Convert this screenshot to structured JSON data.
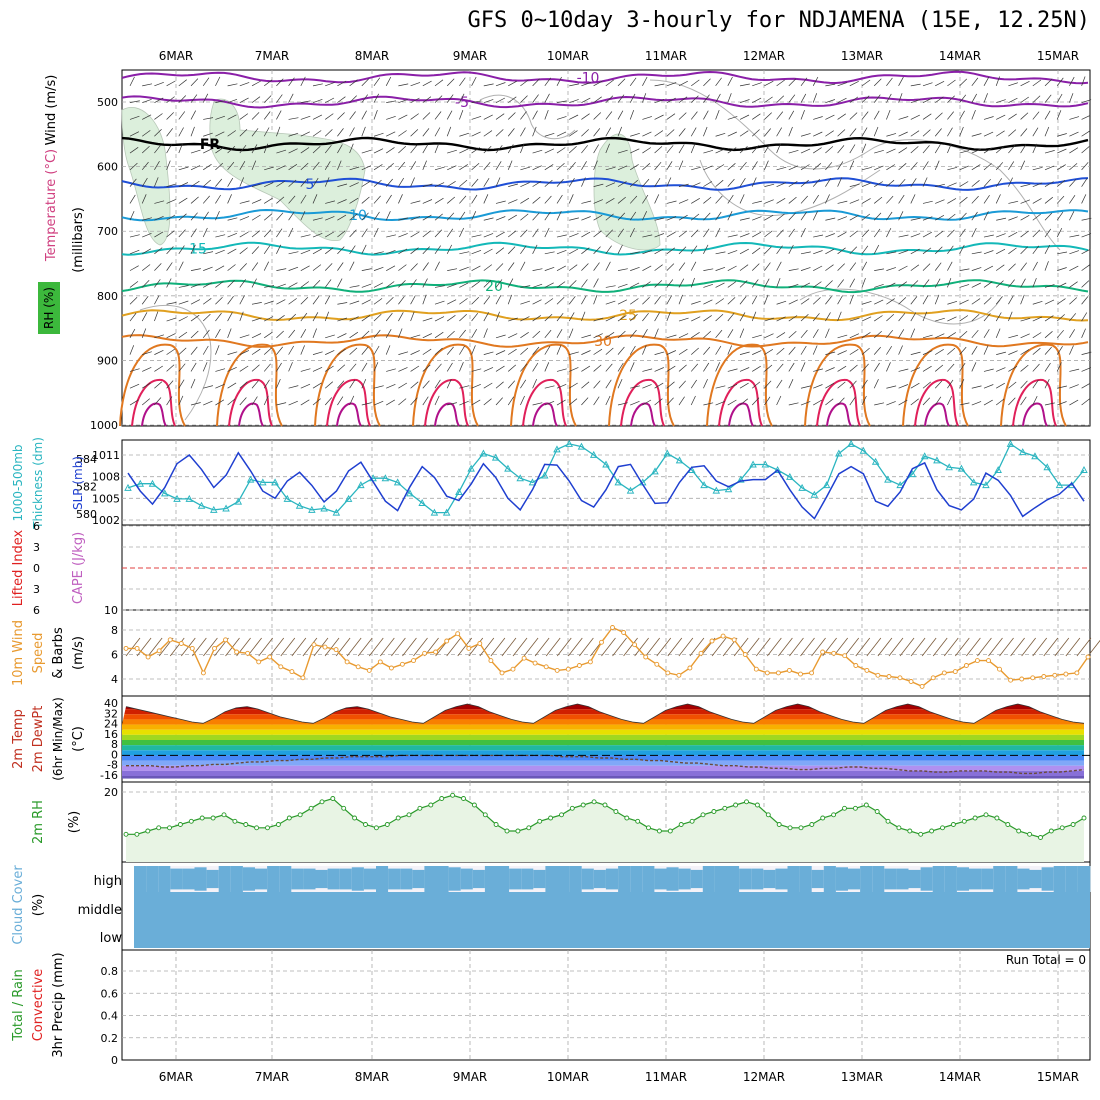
{
  "title": "GFS 0~10day 3-hourly for NDJAMENA (15E, 12.25N)",
  "dates": [
    "6MAR",
    "7MAR",
    "8MAR",
    "9MAR",
    "10MAR",
    "11MAR",
    "12MAR",
    "13MAR",
    "14MAR",
    "15MAR"
  ],
  "colors": {
    "temp_minus10": "#8a1fa8",
    "temp_minus5": "#8a1fa8",
    "temp_fr": "#000000",
    "temp_5": "#1f4fd6",
    "temp_10": "#1a9ad6",
    "temp_15": "#13b8b8",
    "temp_20": "#10b07a",
    "temp_25": "#e0a020",
    "temp_30": "#e07820",
    "temp_35": "#e0205a",
    "temp_40": "#b0108a",
    "rh_fill": "#dcefdc",
    "slp": "#1f3fd0",
    "thickness": "#2ab5c0",
    "wind10": "#e89a30",
    "barb": "#7a5a3a",
    "rh2m": "#2a9a2a",
    "cloud": "#6aaed8",
    "grid": "#aaaaaa"
  },
  "labels": {
    "upper_wind": "Wind (m/s)",
    "upper_temp": "Temperature (°C)",
    "upper_rh": "RH (%)",
    "upper_units": "(millibars)",
    "thk_a": "1000-500mb",
    "thk_b": "Thickness (dm)",
    "slp": "SLP (mb)",
    "li": "Lifted Index",
    "cape": "CAPE (J/kg)",
    "w10_a": "10m Wind",
    "w10_b": "Speed",
    "w10_c": "& Barbs",
    "w10_units": "(m/s)",
    "t2_a": "2m Temp",
    "t2_b": "2m DewPt",
    "t2_c": "(6hr Min/Max)",
    "t2_units": "(°C)",
    "rh2": "2m RH",
    "rh2_units": "(%)",
    "cloud": "Cloud Cover",
    "cloud_units": "(%)",
    "precip_a": "Total / Rain",
    "precip_b": "Convective",
    "precip_c": "3hr Precip (mm)",
    "run_total": "Run Total = 0"
  },
  "chart_data": [
    {
      "panel": "upper_air",
      "type": "line",
      "y_ticks_mb": [
        500,
        600,
        700,
        800,
        900,
        1000
      ],
      "contours": [
        {
          "label": "-10",
          "p_mb": 462
        },
        {
          "label": "-5",
          "p_mb": 500
        },
        {
          "label": "FR",
          "p_mb": 565
        },
        {
          "label": "5",
          "p_mb": 627
        },
        {
          "label": "10",
          "p_mb": 675
        },
        {
          "label": "15",
          "p_mb": 727
        },
        {
          "label": "20",
          "p_mb": 785
        },
        {
          "label": "25",
          "p_mb": 830
        },
        {
          "label": "30",
          "p_mb": 870
        }
      ]
    },
    {
      "panel": "slp_thickness",
      "type": "line",
      "slp_ticks": [
        1002,
        1005,
        1008,
        1011
      ],
      "thk_ticks": [
        580,
        582,
        584
      ],
      "slp_mb": [
        1008.5,
        1006,
        1004.2,
        1006.5,
        1009.8,
        1011,
        1009,
        1006.5,
        1008.2,
        1011.3,
        1008.8,
        1006,
        1005,
        1007.4,
        1008.6,
        1006.8,
        1004.5,
        1006,
        1008.8,
        1010,
        1007.3,
        1004.6,
        1003.3,
        1006.6,
        1009.4,
        1007.9,
        1005.3,
        1004.7,
        1007,
        1009.8,
        1007.9,
        1005,
        1003.4,
        1006.2,
        1009.7,
        1009.6,
        1007.4,
        1004.7,
        1003.8,
        1006.2,
        1009.4,
        1009.7,
        1006.9,
        1004.3,
        1004.4,
        1007.2,
        1009.3,
        1009.5,
        1007.4,
        1006.6,
        1007.4,
        1007.6,
        1007.6,
        1008.9,
        1006.2,
        1003.8,
        1002.2,
        1005.2,
        1008.4,
        1009.4,
        1008.4,
        1004.6,
        1003.9,
        1005.9,
        1009.1,
        1009.9,
        1006.2,
        1004,
        1003.4,
        1004.9,
        1008.5,
        1007.5,
        1005.4,
        1002.5,
        1003.7,
        1004.8,
        1005.6,
        1007.1,
        1004.6
      ],
      "thickness_dm": [
        581.9,
        582.2,
        582.2,
        581.5,
        581.1,
        581.1,
        580.6,
        580.3,
        580.4,
        580.9,
        582.5,
        582.3,
        582.3,
        581.1,
        580.6,
        580.3,
        580.4,
        580.1,
        581.1,
        582.1,
        582.6,
        582.6,
        582.3,
        581.5,
        580.8,
        580.1,
        580.1,
        581.6,
        583.3,
        584.4,
        584.1,
        583.3,
        582.6,
        582.3,
        582.8,
        584.7,
        585.1,
        584.9,
        584.3,
        583.6,
        582.3,
        581.7,
        582.3,
        583.1,
        584.4,
        583.9,
        583.2,
        582.1,
        581.7,
        581.8,
        582.5,
        583.6,
        583.6,
        583.2,
        582.7,
        581.9,
        581.4,
        582.1,
        584.4,
        585.1,
        584.6,
        583.8,
        582.5,
        582.1,
        582.9,
        584.2,
        583.9,
        583.4,
        583.3,
        582.3,
        582.1,
        583.2,
        585.1,
        584.5,
        584.2,
        583.4,
        582.1,
        582.1,
        583.2
      ]
    },
    {
      "panel": "lifted_index_cape",
      "type": "line",
      "li_ticks": [
        -6,
        -3,
        0,
        3,
        6
      ],
      "cape_ticks": [
        10
      ],
      "lifted_index": [],
      "cape": []
    },
    {
      "panel": "wind_10m",
      "type": "line",
      "y_ticks": [
        4,
        6,
        8
      ],
      "speed_ms": [
        6.5,
        6.5,
        5.8,
        6.3,
        7.2,
        6.9,
        6.5,
        4.5,
        6.5,
        7.2,
        6.2,
        6.1,
        5.4,
        5.8,
        5,
        4.6,
        4.1,
        6.8,
        6.6,
        6.4,
        5.4,
        5,
        4.7,
        5.4,
        4.9,
        5.2,
        5.5,
        6.1,
        6.2,
        7.1,
        7.7,
        6.5,
        6.9,
        5.5,
        4.5,
        4.8,
        5.7,
        5.3,
        5,
        4.7,
        4.8,
        5.1,
        5.4,
        7,
        8.2,
        7.8,
        6.8,
        5.8,
        5.2,
        4.5,
        4.3,
        4.9,
        6.1,
        7.1,
        7.5,
        7.2,
        6,
        4.8,
        4.5,
        4.5,
        4.7,
        4.4,
        4.5,
        6.2,
        6.1,
        5.9,
        5.1,
        4.7,
        4.3,
        4.2,
        4.1,
        3.8,
        3.4,
        4.1,
        4.5,
        4.6,
        5.1,
        5.5,
        5.5,
        4.8,
        3.9,
        4,
        4.1,
        4.2,
        4.3,
        4.4,
        4.5,
        5.8
      ]
    },
    {
      "panel": "temp_2m",
      "type": "area",
      "y_ticks": [
        40,
        32,
        24,
        16,
        8,
        0,
        -8,
        -16
      ],
      "temp_c": [
        38,
        36,
        34,
        32,
        30,
        28,
        26,
        25,
        29,
        34,
        37,
        38,
        36,
        33,
        30,
        28,
        26,
        25,
        29,
        34,
        37,
        38,
        36,
        33,
        30,
        28,
        26,
        25,
        30,
        35,
        38,
        40,
        38,
        34,
        31,
        28,
        26,
        25,
        30,
        35,
        38,
        40,
        38,
        34,
        31,
        28,
        26,
        25,
        30,
        35,
        38,
        40,
        38,
        34,
        31,
        28,
        26,
        25,
        30,
        35,
        38,
        40,
        38,
        34,
        31,
        28,
        26,
        25,
        30,
        35,
        38,
        40,
        38,
        34,
        31,
        28,
        26,
        25,
        30,
        35,
        38,
        40,
        38,
        34,
        31,
        28,
        26,
        25
      ],
      "dewpt_c": [
        -8,
        -8,
        -8,
        -9,
        -9,
        -8,
        -8,
        -7,
        -7,
        -6,
        -5,
        -5,
        -4,
        -4,
        -3,
        -3,
        -2,
        -2,
        -1,
        -1,
        -1,
        -1,
        0,
        0,
        0,
        0,
        0,
        0,
        0,
        0,
        0,
        0,
        0,
        0,
        0,
        -1,
        -1,
        -1,
        -2,
        -2,
        -3,
        -3,
        -4,
        -4,
        -5,
        -6,
        -6,
        -7,
        -8,
        -8,
        -9,
        -9,
        -10,
        -10,
        -11,
        -11,
        -10,
        -10,
        -9,
        -9,
        -10,
        -10,
        -11,
        -12,
        -12,
        -13,
        -13,
        -12,
        -12,
        -12,
        -13,
        -13,
        -14,
        -14,
        -13,
        -13,
        -12,
        -11
      ]
    },
    {
      "panel": "rh_2m",
      "type": "area",
      "y_ticks": [
        20
      ],
      "rh_pct": [
        7,
        7,
        8,
        9,
        9,
        10,
        11,
        12,
        12,
        13,
        11,
        10,
        9,
        9,
        10,
        12,
        13,
        15,
        17,
        18,
        15,
        12,
        10,
        9,
        10,
        12,
        13,
        15,
        16,
        18,
        19,
        18,
        16,
        13,
        10,
        8,
        8,
        9,
        11,
        12,
        13,
        15,
        16,
        17,
        16,
        14,
        12,
        11,
        9,
        8,
        8,
        10,
        11,
        13,
        14,
        15,
        16,
        17,
        16,
        13,
        10,
        9,
        9,
        10,
        12,
        13,
        15,
        15,
        16,
        14,
        11,
        9,
        8,
        7,
        8,
        9,
        10,
        11,
        12,
        13,
        12,
        10,
        8,
        7,
        6,
        8,
        9,
        10,
        12
      ]
    },
    {
      "panel": "cloud_cover",
      "type": "bar",
      "levels": [
        "high",
        "middle",
        "low"
      ],
      "high_pct": [
        100,
        100,
        100,
        80,
        80,
        90,
        70,
        100,
        100,
        90,
        80,
        100,
        100,
        80,
        80,
        70,
        80,
        80,
        90,
        80,
        100,
        80,
        80,
        70,
        100,
        100,
        90,
        80,
        70,
        100,
        100,
        80,
        80,
        70,
        100,
        100,
        100,
        80,
        70,
        80,
        100,
        100,
        100,
        80,
        90,
        80,
        70,
        100,
        100,
        100,
        80,
        80,
        70,
        80,
        100,
        100,
        70,
        100,
        90,
        80,
        100,
        100,
        80,
        80,
        70,
        90,
        100,
        100,
        90,
        80,
        80,
        100,
        100,
        80,
        70,
        90,
        100,
        100,
        100
      ]
    },
    {
      "panel": "precip_3hr",
      "type": "bar",
      "y_ticks": [
        0,
        0.2,
        0.4,
        0.6,
        0.8
      ],
      "total_mm": [],
      "convective_mm": []
    }
  ]
}
